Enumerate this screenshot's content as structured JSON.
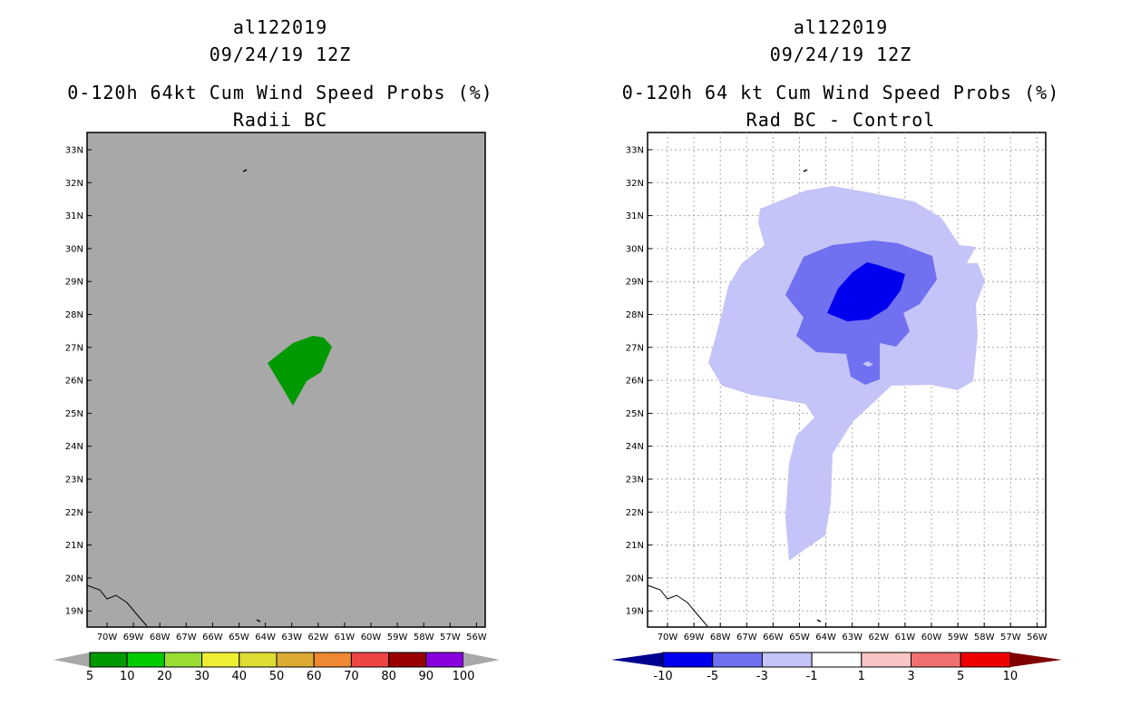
{
  "panels": [
    {
      "storm_id": "al122019",
      "datetime": "09/24/19 12Z",
      "title": "0-120h 64kt Cum Wind Speed Probs (%)",
      "subtitle": "Radii BC",
      "background_color": "#a8a8a8",
      "map_color": "#000000",
      "lat_labels": [
        "33N",
        "32N",
        "31N",
        "30N",
        "29N",
        "28N",
        "27N",
        "26N",
        "25N",
        "24N",
        "23N",
        "22N",
        "21N",
        "20N",
        "19N"
      ],
      "lon_labels": [
        "70W",
        "69W",
        "68W",
        "67W",
        "66W",
        "65W",
        "64W",
        "63W",
        "62W",
        "61W",
        "60W",
        "59W",
        "58W",
        "57W",
        "56W"
      ],
      "legend": {
        "bins": [
          {
            "color": "#009900"
          },
          {
            "color": "#00cc00"
          },
          {
            "color": "#99dd33"
          },
          {
            "color": "#eeee33"
          },
          {
            "color": "#dddd33"
          },
          {
            "color": "#ddaa33"
          },
          {
            "color": "#ee8833"
          },
          {
            "color": "#ee4444"
          },
          {
            "color": "#990000"
          },
          {
            "color": "#8800dd"
          }
        ],
        "low_color": "#a8a8a8",
        "high_color": "#a8a8a8",
        "labels": [
          "5",
          "10",
          "20",
          "30",
          "40",
          "50",
          "60",
          "70",
          "80",
          "90",
          "100"
        ]
      },
      "contours": [
        {
          "level": "5-10%",
          "color": "#009900"
        }
      ]
    },
    {
      "storm_id": "al122019",
      "datetime": "09/24/19 12Z",
      "title": "0-120h 64 kt Cum Wind Speed Probs (%)",
      "subtitle": "Rad BC - Control",
      "background_color": "#ffffff",
      "map_color": "#000000",
      "lat_labels": [
        "33N",
        "32N",
        "31N",
        "30N",
        "29N",
        "28N",
        "27N",
        "26N",
        "25N",
        "24N",
        "23N",
        "22N",
        "21N",
        "20N",
        "19N"
      ],
      "lon_labels": [
        "70W",
        "69W",
        "68W",
        "67W",
        "66W",
        "65W",
        "64W",
        "63W",
        "62W",
        "61W",
        "60W",
        "59W",
        "58W",
        "57W",
        "56W"
      ],
      "legend": {
        "bins": [
          {
            "color": "#0000ee"
          },
          {
            "color": "#7070f0"
          },
          {
            "color": "#c4c4f8"
          },
          {
            "color": "#ffffff"
          },
          {
            "color": "#f8c4c4"
          },
          {
            "color": "#f07070"
          },
          {
            "color": "#ee0000"
          }
        ],
        "low_color": "#000090",
        "high_color": "#800000",
        "labels": [
          "-10",
          "-5",
          "-3",
          "-1",
          "1",
          "3",
          "5",
          "10"
        ]
      },
      "contours": [
        {
          "level": "-3 to -1",
          "color": "#c4c4f8"
        },
        {
          "level": "-5 to -3",
          "color": "#7070f0"
        },
        {
          "level": "-10 to -5",
          "color": "#0000ee"
        }
      ]
    }
  ]
}
